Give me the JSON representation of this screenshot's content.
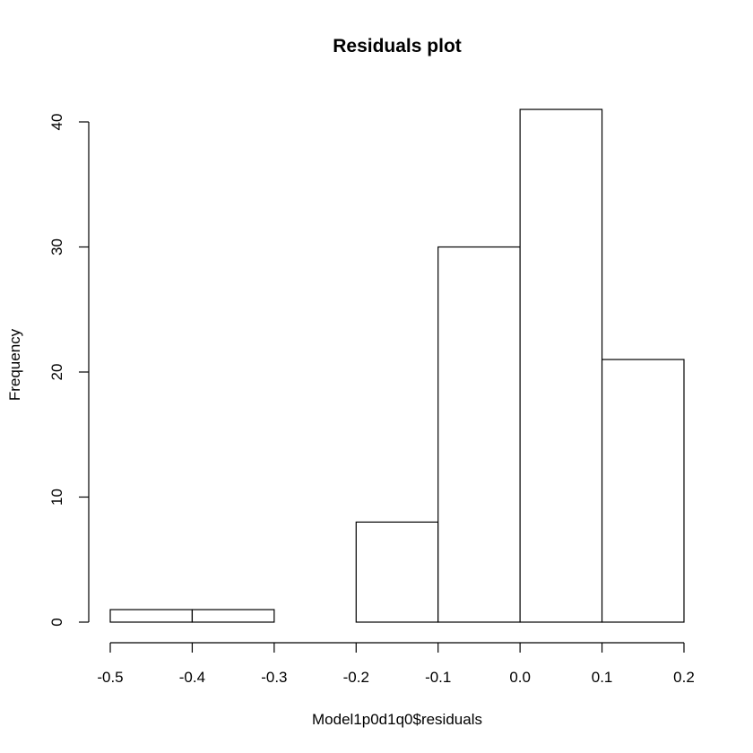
{
  "chart_data": {
    "type": "bar",
    "title": "Residuals plot",
    "xlabel": "Model1p0d1q0$residuals",
    "ylabel": "Frequency",
    "bins": [
      {
        "from": -0.5,
        "to": -0.4,
        "count": 1
      },
      {
        "from": -0.4,
        "to": -0.3,
        "count": 1
      },
      {
        "from": -0.3,
        "to": -0.2,
        "count": 0
      },
      {
        "from": -0.2,
        "to": -0.1,
        "count": 8
      },
      {
        "from": -0.1,
        "to": 0.0,
        "count": 30
      },
      {
        "from": 0.0,
        "to": 0.1,
        "count": 41
      },
      {
        "from": 0.1,
        "to": 0.2,
        "count": 21
      }
    ],
    "xlim": [
      -0.5,
      0.2
    ],
    "ylim": [
      0,
      40
    ],
    "x_ticks": [
      -0.5,
      -0.4,
      -0.3,
      -0.2,
      -0.1,
      0.0,
      0.1,
      0.2
    ],
    "x_tick_labels": [
      "-0.5",
      "-0.4",
      "-0.3",
      "-0.2",
      "-0.1",
      "0.0",
      "0.1",
      "0.2"
    ],
    "y_ticks": [
      0,
      10,
      20,
      30,
      40
    ],
    "y_tick_labels": [
      "0",
      "10",
      "20",
      "30",
      "40"
    ],
    "grid": false,
    "colors": {
      "bar_fill": "#ffffff",
      "bar_stroke": "#000000",
      "axis": "#000000"
    }
  }
}
